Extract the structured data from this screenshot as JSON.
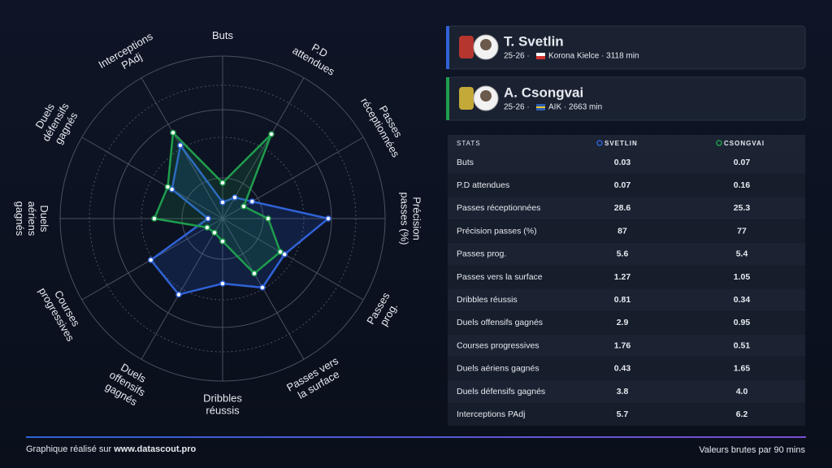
{
  "chart_data": {
    "type": "radar",
    "categories": [
      [
        "Buts"
      ],
      [
        "P.D",
        "attendues"
      ],
      [
        "Passes",
        "réceptionnées"
      ],
      [
        "Précision",
        "passes (%)"
      ],
      [
        "Passes",
        "prog."
      ],
      [
        "Passes vers",
        "la surface"
      ],
      [
        "Dribbles",
        "réussis"
      ],
      [
        "Duels",
        "offensifs",
        "gagnés"
      ],
      [
        "Courses",
        "progressives"
      ],
      [
        "Duels",
        "aériens",
        "gagnés"
      ],
      [
        "Duels",
        "défensifs",
        "gagnés"
      ],
      [
        "Interceptions",
        "PAdj"
      ]
    ],
    "ylim": [
      0,
      100
    ],
    "series": [
      {
        "name": "SVETLIN",
        "color": "#2f62d6",
        "values": [
          10,
          15,
          21,
          65,
          44,
          49,
          40,
          54,
          51,
          9,
          36,
          52
        ]
      },
      {
        "name": "CSONGVAI",
        "color": "#1f9d4e",
        "values": [
          22,
          60,
          15,
          28,
          41,
          39,
          14,
          10,
          11,
          42,
          39,
          61
        ]
      }
    ]
  },
  "players": [
    {
      "name": "T. Svetlin",
      "season": "25-26 ·",
      "details": "Korona Kielce · 3118 min",
      "color": "#2f62d6"
    },
    {
      "name": "A. Csongvai",
      "season": "25-26 ·",
      "details": "AIK · 2663 min",
      "color": "#1f9d4e"
    }
  ],
  "table": {
    "headers": [
      "STATS",
      "SVETLIN",
      "CSONGVAI"
    ],
    "rows": [
      [
        "Buts",
        "0.03",
        "0.07"
      ],
      [
        "P.D attendues",
        "0.07",
        "0.16"
      ],
      [
        "Passes réceptionnées",
        "28.6",
        "25.3"
      ],
      [
        "Précision passes (%)",
        "87",
        "77"
      ],
      [
        "Passes prog.",
        "5.6",
        "5.4"
      ],
      [
        "Passes vers la surface",
        "1.27",
        "1.05"
      ],
      [
        "Dribbles réussis",
        "0.81",
        "0.34"
      ],
      [
        "Duels offensifs gagnés",
        "2.9",
        "0.95"
      ],
      [
        "Courses progressives",
        "1.76",
        "0.51"
      ],
      [
        "Duels aériens gagnés",
        "0.43",
        "1.65"
      ],
      [
        "Duels défensifs gagnés",
        "3.8",
        "4.0"
      ],
      [
        "Interceptions PAdj",
        "5.7",
        "6.2"
      ]
    ]
  },
  "footer": {
    "prefix": "Graphique réalisé sur",
    "link": "www.datascout.pro",
    "note": "Valeurs brutes par 90 mins"
  }
}
